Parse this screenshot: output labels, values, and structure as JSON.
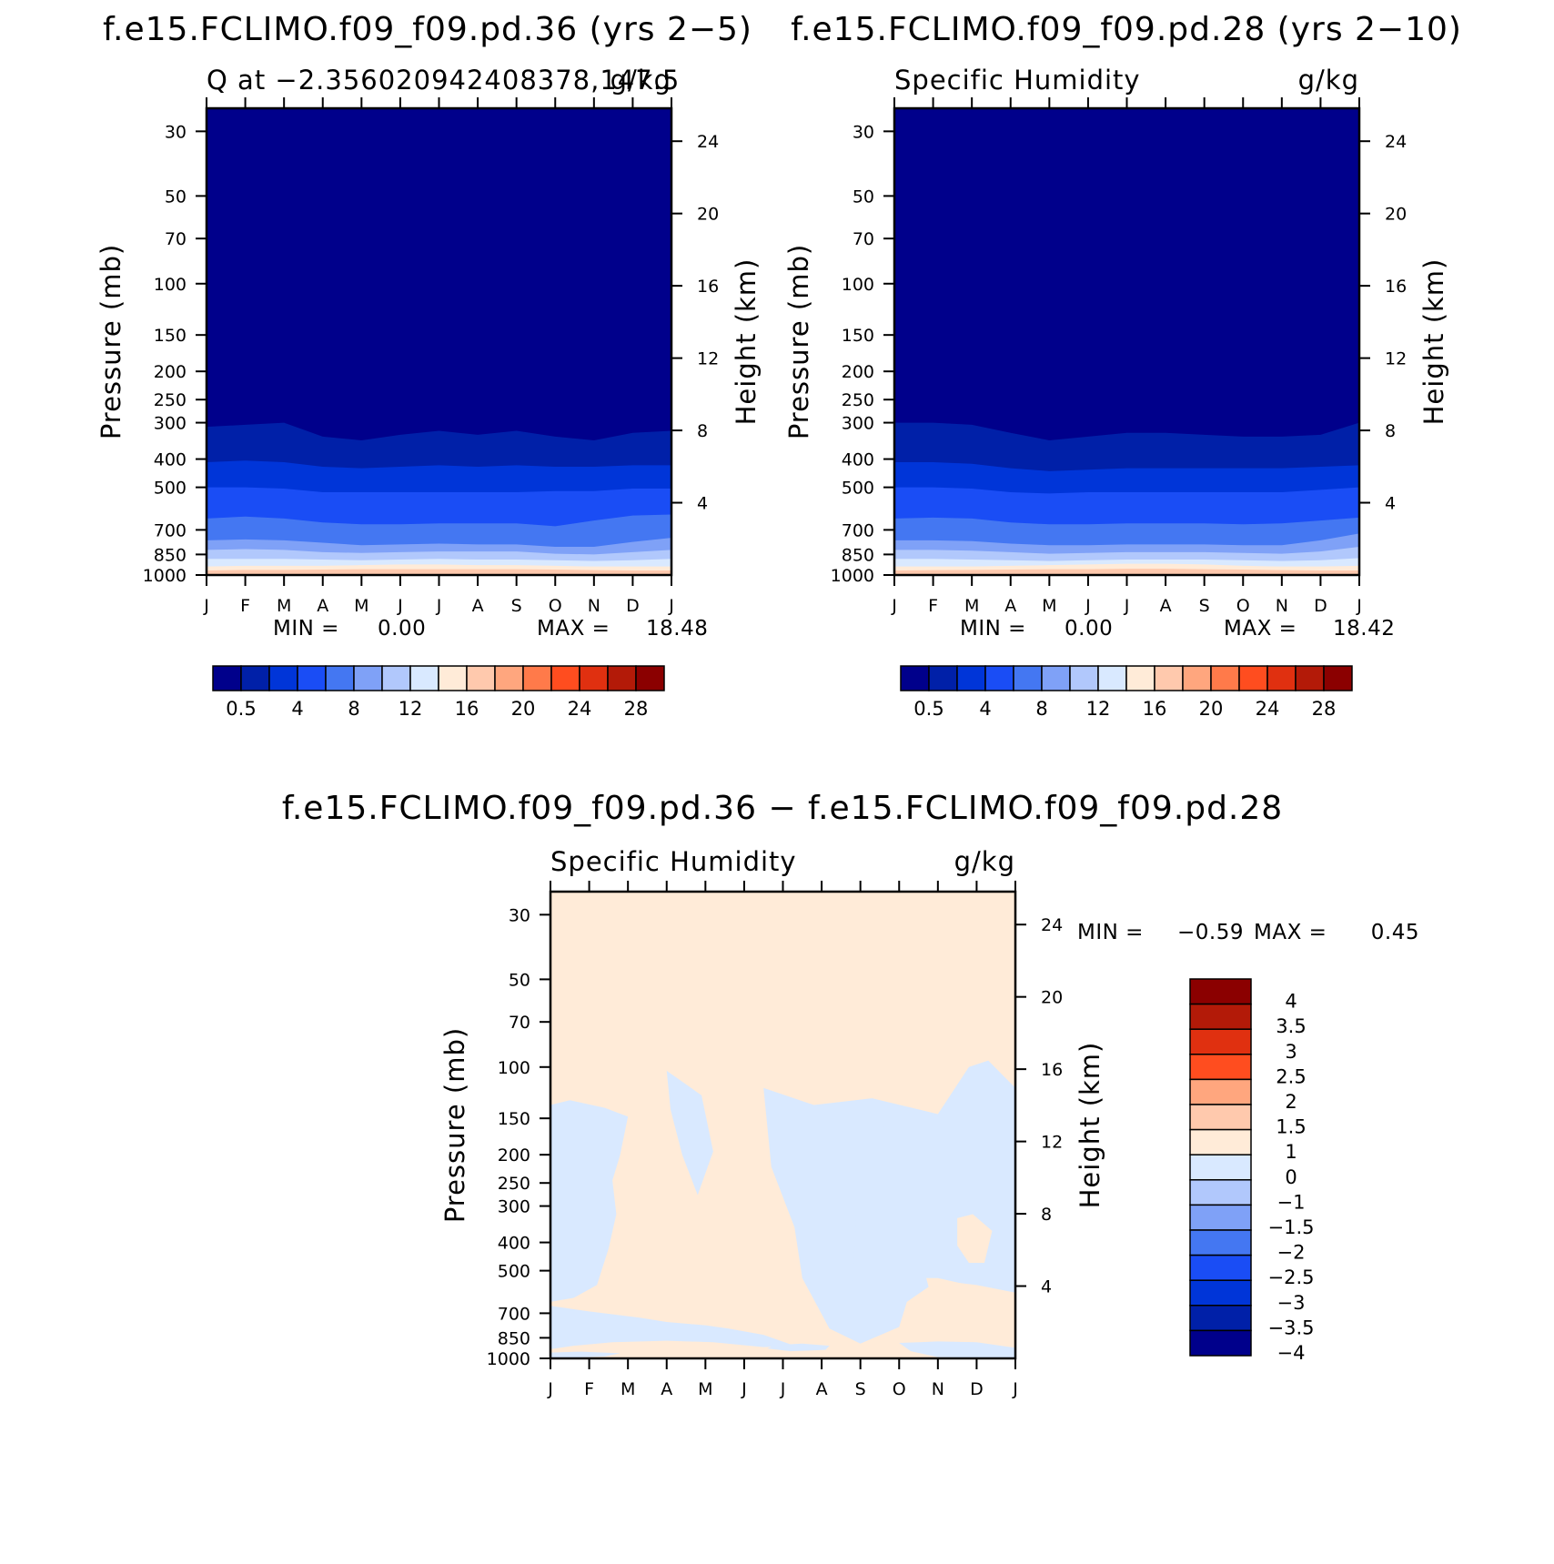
{
  "chart_data": [
    {
      "type": "heatmap",
      "id": "p1",
      "title": "f.e15.FCLIMO.f09_f09.pd.36 (yrs 2−5)",
      "left_label": "Q at −2.356020942408378,147.5",
      "right_label": "g/kg",
      "xlabel": "",
      "ylabel": "Pressure (mb)",
      "ylabel_right": "Height (km)",
      "x_ticks": [
        "J",
        "F",
        "M",
        "A",
        "M",
        "J",
        "J",
        "A",
        "S",
        "O",
        "N",
        "D",
        "J"
      ],
      "y_ticks": [
        30,
        50,
        70,
        100,
        150,
        200,
        250,
        300,
        400,
        500,
        700,
        850,
        1000
      ],
      "y_right_ticks": [
        24,
        20,
        16,
        12,
        8,
        4
      ],
      "ylim": [
        1000,
        25
      ],
      "y_scale": "log",
      "min_label": "MIN =",
      "min_value": "0.00",
      "max_label": "MAX =",
      "max_value": "18.48",
      "colorbar": {
        "orientation": "horizontal",
        "labels": [
          "0.5",
          "4",
          "8",
          "12",
          "16",
          "20",
          "24",
          "28"
        ],
        "colors": [
          "#00008b",
          "#0020a8",
          "#0035d8",
          "#1a4df5",
          "#4477f2",
          "#7fa1f7",
          "#b1c8fc",
          "#d9e9ff",
          "#ffebd8",
          "#ffc9ad",
          "#ffa67e",
          "#ff7a4a",
          "#ff4d1f",
          "#e03010",
          "#b31a08",
          "#8b0000"
        ]
      },
      "bands": [
        {
          "color": "#00008b",
          "p": [
            310,
            305,
            300,
            335,
            345,
            330,
            320,
            330,
            320,
            335,
            345,
            325,
            320
          ]
        },
        {
          "color": "#0020a8",
          "p": [
            410,
            405,
            410,
            425,
            430,
            425,
            420,
            425,
            420,
            425,
            425,
            420,
            420
          ]
        },
        {
          "color": "#0035d8",
          "p": [
            500,
            500,
            505,
            520,
            520,
            520,
            520,
            520,
            520,
            515,
            515,
            505,
            505
          ]
        },
        {
          "color": "#1a4df5",
          "p": [
            640,
            630,
            640,
            660,
            670,
            670,
            665,
            665,
            665,
            680,
            650,
            625,
            620
          ]
        },
        {
          "color": "#4477f2",
          "p": [
            760,
            755,
            760,
            775,
            790,
            785,
            780,
            785,
            785,
            800,
            800,
            770,
            745
          ]
        },
        {
          "color": "#7fa1f7",
          "p": [
            820,
            815,
            820,
            835,
            840,
            835,
            830,
            830,
            830,
            845,
            850,
            835,
            820
          ]
        },
        {
          "color": "#b1c8fc",
          "p": [
            880,
            880,
            880,
            885,
            890,
            885,
            880,
            885,
            885,
            890,
            895,
            890,
            880
          ]
        },
        {
          "color": "#d9e9ff",
          "p": [
            935,
            930,
            930,
            930,
            925,
            920,
            920,
            925,
            925,
            930,
            935,
            935,
            935
          ]
        },
        {
          "color": "#ffebd8",
          "p": [
            965,
            960,
            960,
            958,
            955,
            955,
            955,
            955,
            955,
            958,
            962,
            965,
            965
          ]
        },
        {
          "color": "#ffc9ad",
          "p": [
            1000,
            1000,
            1000,
            1000,
            1000,
            1000,
            1000,
            1000,
            1000,
            1000,
            1000,
            1000,
            1000
          ]
        }
      ]
    },
    {
      "type": "heatmap",
      "id": "p2",
      "title": "f.e15.FCLIMO.f09_f09.pd.28 (yrs 2−10)",
      "left_label": "Specific Humidity",
      "right_label": "g/kg",
      "xlabel": "",
      "ylabel": "Pressure (mb)",
      "ylabel_right": "Height (km)",
      "x_ticks": [
        "J",
        "F",
        "M",
        "A",
        "M",
        "J",
        "J",
        "A",
        "S",
        "O",
        "N",
        "D",
        "J"
      ],
      "y_ticks": [
        30,
        50,
        70,
        100,
        150,
        200,
        250,
        300,
        400,
        500,
        700,
        850,
        1000
      ],
      "y_right_ticks": [
        24,
        20,
        16,
        12,
        8,
        4
      ],
      "ylim": [
        1000,
        25
      ],
      "y_scale": "log",
      "min_label": "MIN =",
      "min_value": "0.00",
      "max_label": "MAX =",
      "max_value": "18.42",
      "colorbar": {
        "orientation": "horizontal",
        "labels": [
          "0.5",
          "4",
          "8",
          "12",
          "16",
          "20",
          "24",
          "28"
        ],
        "colors": [
          "#00008b",
          "#0020a8",
          "#0035d8",
          "#1a4df5",
          "#4477f2",
          "#7fa1f7",
          "#b1c8fc",
          "#d9e9ff",
          "#ffebd8",
          "#ffc9ad",
          "#ffa67e",
          "#ff7a4a",
          "#ff4d1f",
          "#e03010",
          "#b31a08",
          "#8b0000"
        ]
      },
      "bands": [
        {
          "color": "#00008b",
          "p": [
            300,
            300,
            305,
            325,
            345,
            335,
            325,
            325,
            330,
            335,
            335,
            330,
            300
          ]
        },
        {
          "color": "#0020a8",
          "p": [
            410,
            410,
            415,
            430,
            440,
            435,
            430,
            430,
            430,
            430,
            430,
            425,
            420
          ]
        },
        {
          "color": "#0035d8",
          "p": [
            500,
            500,
            505,
            520,
            525,
            520,
            520,
            520,
            520,
            520,
            520,
            510,
            500
          ]
        },
        {
          "color": "#1a4df5",
          "p": [
            640,
            635,
            640,
            660,
            670,
            670,
            665,
            665,
            665,
            670,
            665,
            650,
            635
          ]
        },
        {
          "color": "#4477f2",
          "p": [
            760,
            760,
            765,
            780,
            790,
            790,
            785,
            785,
            785,
            790,
            790,
            760,
            720
          ]
        },
        {
          "color": "#7fa1f7",
          "p": [
            820,
            820,
            825,
            835,
            845,
            840,
            835,
            835,
            835,
            840,
            845,
            830,
            800
          ]
        },
        {
          "color": "#b1c8fc",
          "p": [
            880,
            880,
            885,
            890,
            895,
            890,
            885,
            885,
            885,
            890,
            895,
            890,
            875
          ]
        },
        {
          "color": "#d9e9ff",
          "p": [
            935,
            935,
            935,
            930,
            925,
            920,
            915,
            915,
            920,
            930,
            935,
            935,
            930
          ]
        },
        {
          "color": "#ffebd8",
          "p": [
            965,
            962,
            960,
            958,
            955,
            955,
            952,
            952,
            955,
            958,
            962,
            965,
            965
          ]
        },
        {
          "color": "#ffc9ad",
          "p": [
            1000,
            1000,
            1000,
            1000,
            1000,
            1000,
            1000,
            1000,
            1000,
            1000,
            1000,
            1000,
            1000
          ]
        }
      ]
    },
    {
      "type": "heatmap",
      "id": "p3",
      "title": "f.e15.FCLIMO.f09_f09.pd.36 − f.e15.FCLIMO.f09_f09.pd.28",
      "left_label": "Specific Humidity",
      "right_label": "g/kg",
      "xlabel": "",
      "ylabel": "Pressure (mb)",
      "ylabel_right": "Height (km)",
      "x_ticks": [
        "J",
        "F",
        "M",
        "A",
        "M",
        "J",
        "J",
        "A",
        "S",
        "O",
        "N",
        "D",
        "J"
      ],
      "y_ticks": [
        30,
        50,
        70,
        100,
        150,
        200,
        250,
        300,
        400,
        500,
        700,
        850,
        1000
      ],
      "y_right_ticks": [
        24,
        20,
        16,
        12,
        8,
        4
      ],
      "ylim": [
        1000,
        25
      ],
      "y_scale": "log",
      "min_label": "MIN =",
      "min_value": "−0.59",
      "max_label": "MAX =",
      "max_value": "0.45",
      "colorbar": {
        "orientation": "vertical",
        "labels": [
          "4",
          "3.5",
          "3",
          "2.5",
          "2",
          "1.5",
          "1",
          "0",
          "−1",
          "−1.5",
          "−2",
          "−2.5",
          "−3",
          "−3.5",
          "−4"
        ],
        "colors": [
          "#8b0000",
          "#b31a08",
          "#e03010",
          "#ff4d1f",
          "#ffa67e",
          "#ffc9ad",
          "#ffebd8",
          "#d9e9ff",
          "#b1c8fc",
          "#7fa1f7",
          "#4477f2",
          "#1a4df5",
          "#0035d8",
          "#0020a8",
          "#00008b"
        ]
      },
      "background_color": "#ffebd8",
      "regions": [
        {
          "color": "#d9e9ff",
          "pts": [
            [
              0,
              135
            ],
            [
              0.5,
              130
            ],
            [
              1.4,
              138
            ],
            [
              2.0,
              148
            ],
            [
              1.8,
              200
            ],
            [
              1.6,
              245
            ],
            [
              1.7,
              320
            ],
            [
              1.5,
              420
            ],
            [
              1.2,
              560
            ],
            [
              0.6,
              620
            ],
            [
              0,
              640
            ]
          ]
        },
        {
          "color": "#d9e9ff",
          "pts": [
            [
              3.0,
              103
            ],
            [
              3.9,
              125
            ],
            [
              4.2,
              195
            ],
            [
              3.8,
              275
            ],
            [
              3.4,
              200
            ],
            [
              3.1,
              140
            ]
          ]
        },
        {
          "color": "#d9e9ff",
          "pts": [
            [
              5.5,
              118
            ],
            [
              6.8,
              135
            ],
            [
              8.3,
              128
            ],
            [
              10.0,
              145
            ],
            [
              10.8,
              100
            ],
            [
              11.3,
              95
            ],
            [
              12,
              118
            ],
            [
              12,
              595
            ],
            [
              11.0,
              560
            ],
            [
              10.0,
              540
            ],
            [
              9.2,
              640
            ],
            [
              9.0,
              780
            ],
            [
              8.0,
              890
            ],
            [
              7.2,
              790
            ],
            [
              6.5,
              530
            ],
            [
              6.3,
              355
            ],
            [
              5.7,
              220
            ]
          ]
        },
        {
          "color": "#d9e9ff",
          "pts": [
            [
              8.2,
              170
            ],
            [
              8.6,
              160
            ],
            [
              9.1,
              178
            ],
            [
              9.5,
              230
            ],
            [
              9.5,
              420
            ],
            [
              8.8,
              500
            ],
            [
              8.3,
              640
            ],
            [
              8.3,
              820
            ],
            [
              7.8,
              560
            ],
            [
              7.9,
              300
            ]
          ]
        },
        {
          "color": "#d9e9ff",
          "pts": [
            [
              0,
              660
            ],
            [
              1.0,
              690
            ],
            [
              2.3,
              725
            ],
            [
              3.0,
              750
            ],
            [
              4.0,
              770
            ],
            [
              4.6,
              790
            ],
            [
              5.5,
              830
            ],
            [
              6.3,
              905
            ],
            [
              5.5,
              915
            ],
            [
              4.2,
              880
            ],
            [
              3.0,
              870
            ],
            [
              1.6,
              880
            ],
            [
              0.6,
              905
            ],
            [
              0,
              930
            ]
          ]
        },
        {
          "color": "#d9e9ff",
          "pts": [
            [
              0,
              955
            ],
            [
              0.8,
              948
            ],
            [
              1.8,
              960
            ],
            [
              1.4,
              985
            ],
            [
              0,
              1000
            ]
          ]
        },
        {
          "color": "#d9e9ff",
          "pts": [
            [
              9.0,
              885
            ],
            [
              10.0,
              875
            ],
            [
              11.0,
              880
            ],
            [
              12,
              920
            ],
            [
              12,
              1000
            ],
            [
              10.0,
              990
            ],
            [
              9.3,
              945
            ]
          ]
        },
        {
          "color": "#d9e9ff",
          "pts": [
            [
              5.8,
              900
            ],
            [
              6.5,
              890
            ],
            [
              7.2,
              905
            ],
            [
              7.1,
              935
            ],
            [
              6.2,
              945
            ],
            [
              5.6,
              925
            ]
          ]
        },
        {
          "color": "#ffebd8",
          "pts": [
            [
              10.5,
              330
            ],
            [
              10.9,
              320
            ],
            [
              11.4,
              365
            ],
            [
              11.2,
              470
            ],
            [
              10.8,
              470
            ],
            [
              10.5,
              410
            ]
          ]
        },
        {
          "color": "#ffebd8",
          "pts": [
            [
              9.7,
              530
            ],
            [
              10.0,
              530
            ],
            [
              10.8,
              560
            ],
            [
              11.5,
              580
            ],
            [
              12,
              610
            ],
            [
              11.5,
              650
            ],
            [
              10.5,
              680
            ],
            [
              9.9,
              670
            ]
          ]
        }
      ]
    }
  ]
}
